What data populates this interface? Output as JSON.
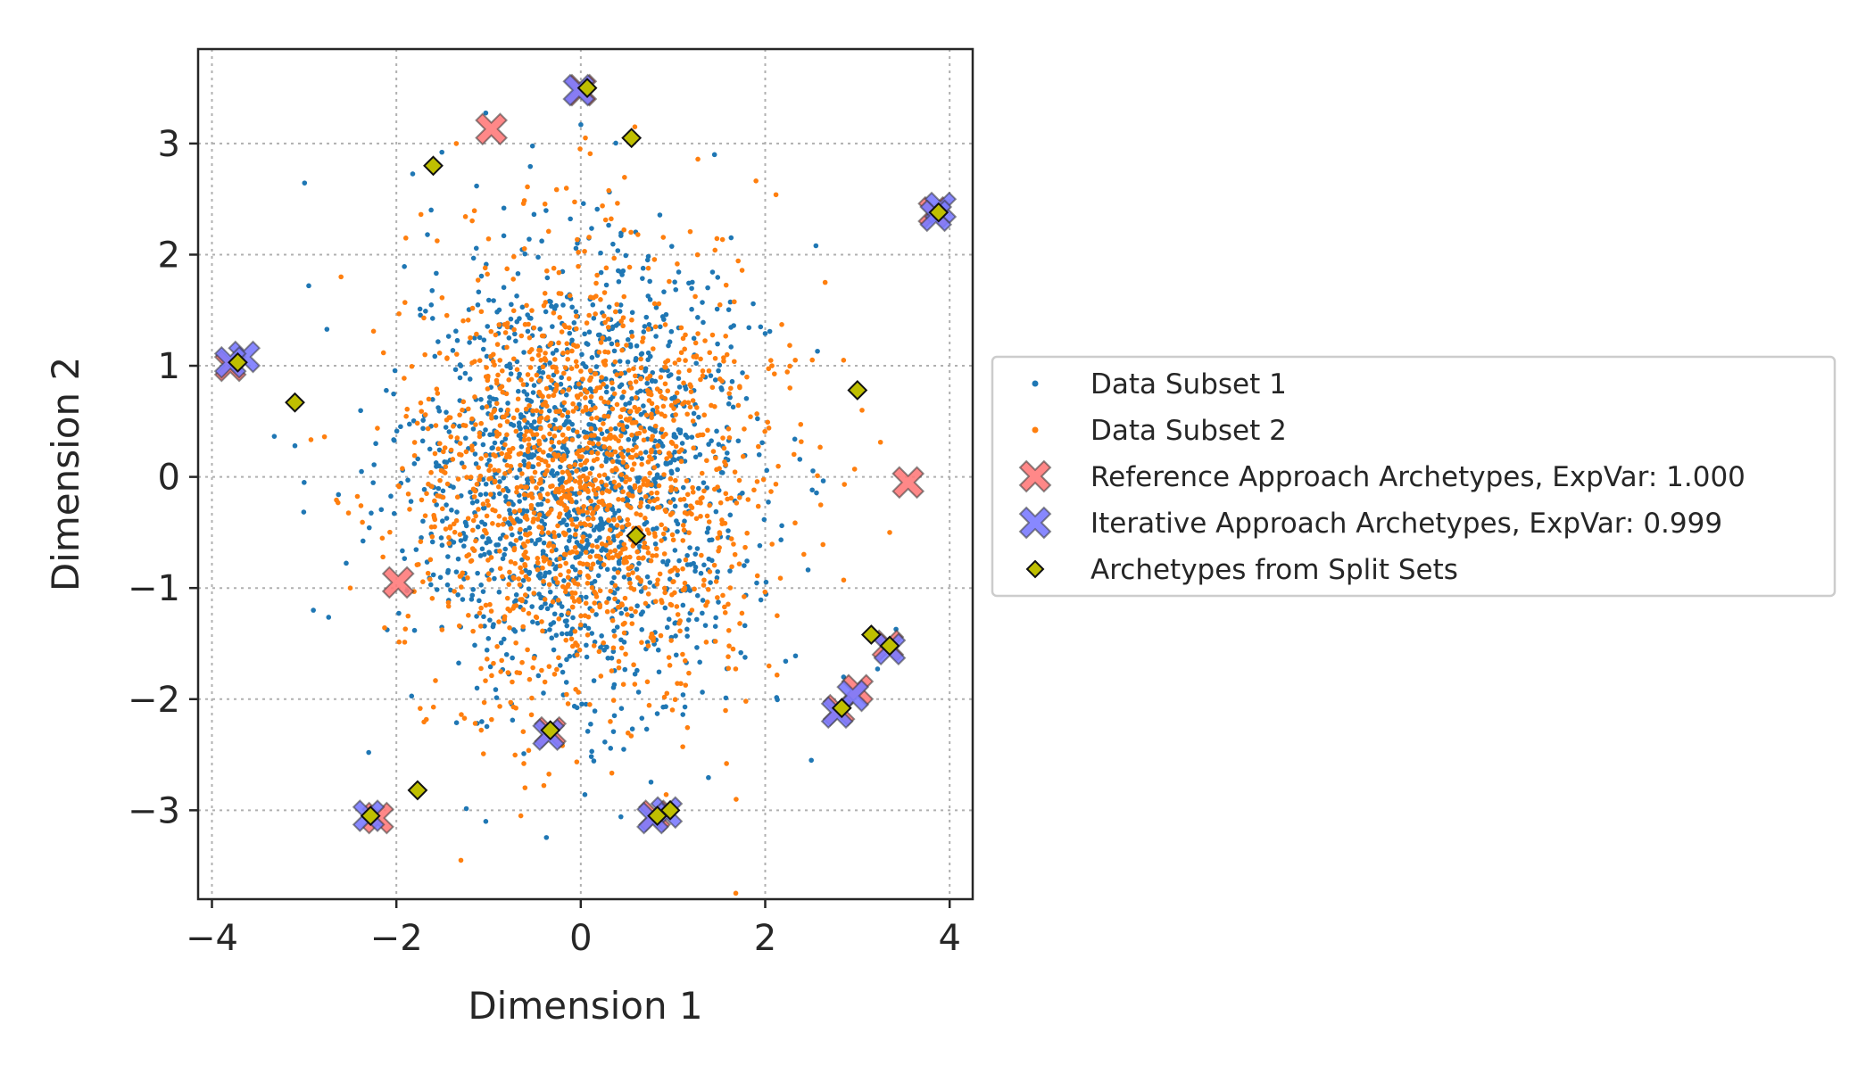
{
  "chart_data": {
    "type": "scatter",
    "xlabel": "Dimension 1",
    "ylabel": "Dimension 2",
    "xlim": [
      -4.15,
      4.25
    ],
    "ylim": [
      -3.8,
      3.85
    ],
    "xticks": [
      -4,
      -2,
      0,
      2,
      4
    ],
    "yticks": [
      -3,
      -2,
      -1,
      0,
      1,
      2,
      3
    ],
    "xtick_labels": [
      "−4",
      "−2",
      "0",
      "2",
      "4"
    ],
    "ytick_labels": [
      "−3",
      "−2",
      "−1",
      "0",
      "1",
      "2",
      "3"
    ],
    "grid": true,
    "legend_position": "right, outside plot",
    "series": [
      {
        "name": "Data Subset 1",
        "kind": "point-cloud",
        "color": "#1f77b4",
        "marker": "dot",
        "n": 1500,
        "center": [
          0.0,
          0.0
        ],
        "std": [
          0.95,
          1.0
        ],
        "outliers": [
          [
            1.45,
            2.9
          ],
          [
            2.55,
            2.08
          ],
          [
            -2.95,
            1.72
          ],
          [
            -3.1,
            0.28
          ],
          [
            -2.9,
            -1.2
          ],
          [
            2.5,
            -2.55
          ],
          [
            -1.03,
            -3.1
          ],
          [
            -2.3,
            -2.48
          ],
          [
            1.95,
            1.35
          ],
          [
            -3.0,
            -0.05
          ]
        ]
      },
      {
        "name": "Data Subset 2",
        "kind": "point-cloud",
        "color": "#ff7f0e",
        "marker": "dot",
        "n": 1500,
        "center": [
          0.0,
          0.0
        ],
        "std": [
          0.95,
          1.0
        ],
        "outliers": [
          [
            0.05,
            3.05
          ],
          [
            -1.35,
            3.0
          ],
          [
            2.65,
            1.75
          ],
          [
            3.35,
            -0.5
          ],
          [
            -1.3,
            -3.45
          ],
          [
            -2.6,
            1.8
          ],
          [
            -2.5,
            -1.0
          ],
          [
            2.85,
            1.05
          ],
          [
            -0.65,
            -3.05
          ],
          [
            3.05,
            0.6
          ]
        ]
      },
      {
        "name": "Reference Approach Archetypes, ExpVar: 1.000",
        "color": "#ff7b7b",
        "marker": "X",
        "points": [
          [
            -0.97,
            3.13
          ],
          [
            3.55,
            -0.05
          ],
          [
            -1.98,
            -0.95
          ],
          [
            3.0,
            -1.92
          ],
          [
            -2.2,
            -3.07
          ],
          [
            0.8,
            -3.05
          ],
          [
            -3.8,
            1.0
          ],
          [
            3.83,
            2.38
          ],
          [
            0.0,
            3.48
          ],
          [
            2.8,
            -2.1
          ],
          [
            3.33,
            -1.52
          ],
          [
            -0.33,
            -2.3
          ]
        ]
      },
      {
        "name": "Iterative Approach Archetypes, ExpVar: 0.999",
        "color": "#7b7bff",
        "marker": "X",
        "points": [
          [
            -0.02,
            3.48
          ],
          [
            3.9,
            2.42
          ],
          [
            -3.65,
            1.08
          ],
          [
            3.35,
            -1.55
          ],
          [
            2.78,
            -2.12
          ],
          [
            -0.35,
            -2.32
          ],
          [
            -2.3,
            -3.05
          ],
          [
            0.93,
            -3.02
          ],
          [
            3.85,
            2.35
          ],
          [
            -3.8,
            1.03
          ],
          [
            0.78,
            -3.07
          ],
          [
            2.95,
            -1.97
          ]
        ]
      },
      {
        "name": "Archetypes from Split Sets",
        "color": "#bfbf00",
        "marker": "diamond",
        "points": [
          [
            0.07,
            3.5
          ],
          [
            0.55,
            3.05
          ],
          [
            -1.6,
            2.8
          ],
          [
            3.88,
            2.38
          ],
          [
            -3.72,
            1.03
          ],
          [
            -3.1,
            0.67
          ],
          [
            3.0,
            0.78
          ],
          [
            0.6,
            -0.53
          ],
          [
            3.15,
            -1.42
          ],
          [
            3.35,
            -1.52
          ],
          [
            2.83,
            -2.08
          ],
          [
            -0.33,
            -2.28
          ],
          [
            -1.77,
            -2.82
          ],
          [
            -2.28,
            -3.05
          ],
          [
            0.83,
            -3.05
          ],
          [
            0.97,
            -3.0
          ]
        ]
      }
    ]
  }
}
